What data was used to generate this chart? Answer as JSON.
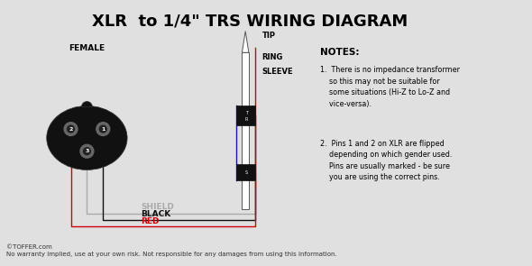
{
  "title": "XLR  to 1/4\" TRS WIRING DIAGRAM",
  "title_fontsize": 13,
  "title_fontweight": "bold",
  "bg_color": "#e0e0e0",
  "female_label": "FEMALE",
  "notes_title": "NOTES:",
  "note1": "1.  There is no impedance transformer\n    so this may not be suitable for\n    some situations (Hi-Z to Lo-Z and\n    vice-versa).",
  "note2": "2.  Pins 1 and 2 on XLR are flipped\n    depending on which gender used.\n    Pins are usually marked - be sure\n    you are using the correct pins.",
  "copyright": "©TOFFER.com\nNo warranty implied, use at your own risk. Not responsible for any damages from using this information.",
  "wire_shield_color": "#aaaaaa",
  "wire_black_color": "#111111",
  "wire_red_color": "#cc0000",
  "wire_blue_color": "#1a1aaa",
  "shield_label": "SHIELD",
  "black_label": "BLACK",
  "red_label": "RED",
  "tip_label": "TIP",
  "ring_label": "RING",
  "sleeve_label": "SLEEVE"
}
